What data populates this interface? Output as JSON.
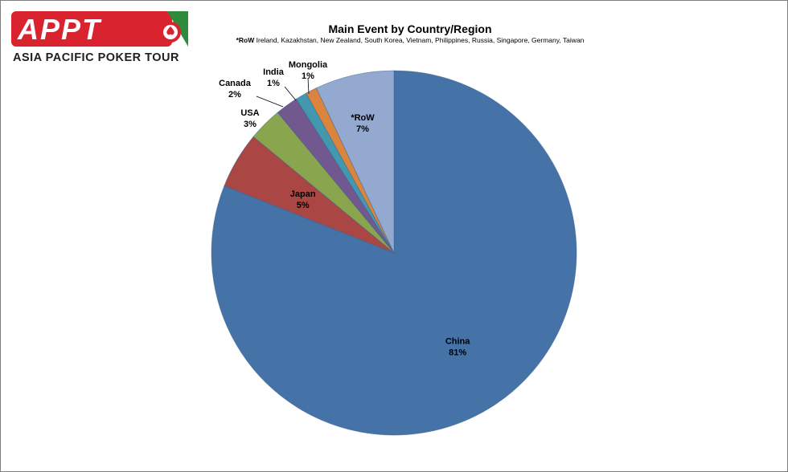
{
  "logo": {
    "wordmark": "APPT",
    "tagline": "ASIA PACIFIC POKER TOUR"
  },
  "chart_data": {
    "type": "pie",
    "title": "Main Event by Country/Region",
    "subtitle_key": "*RoW",
    "subtitle_text": "Ireland, Kazakhstan, New Zealand, South Korea, Vietnam, Philippines, Russia, Singapore, Germany, Taiwan",
    "slices": [
      {
        "label": "China",
        "value": 81,
        "percent_label": "81%",
        "color": "#4572a7"
      },
      {
        "label": "Japan",
        "value": 5,
        "percent_label": "5%",
        "color": "#aa4643"
      },
      {
        "label": "USA",
        "value": 3,
        "percent_label": "3%",
        "color": "#89a54e"
      },
      {
        "label": "Canada",
        "value": 2,
        "percent_label": "2%",
        "color": "#71588f"
      },
      {
        "label": "India",
        "value": 1,
        "percent_label": "1%",
        "color": "#4198af"
      },
      {
        "label": "Mongolia",
        "value": 1,
        "percent_label": "1%",
        "color": "#db843d"
      },
      {
        "label": "*RoW",
        "value": 7,
        "percent_label": "7%",
        "color": "#93a9cf"
      }
    ],
    "legend": "none"
  }
}
